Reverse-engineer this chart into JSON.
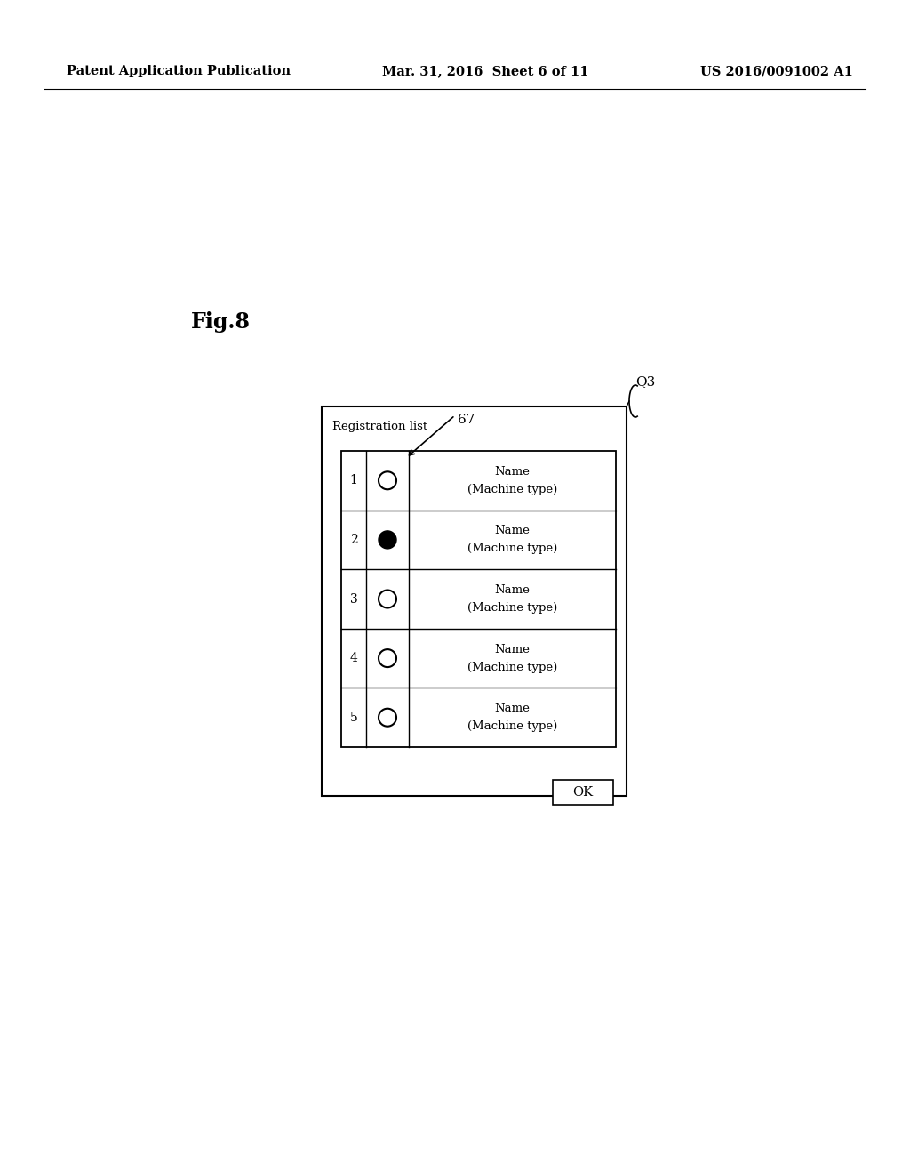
{
  "bg_color": "#ffffff",
  "header_left": "Patent Application Publication",
  "header_center": "Mar. 31, 2016  Sheet 6 of 11",
  "header_right": "US 2016/0091002 A1",
  "fig_label": "Fig.8",
  "label_Q3": "Q3",
  "label_67": "67",
  "panel_title": "Registration list",
  "rows": [
    {
      "num": "1",
      "filled": false,
      "name": "Name",
      "type": "(Machine type)"
    },
    {
      "num": "2",
      "filled": true,
      "name": "Name",
      "type": "(Machine type)"
    },
    {
      "num": "3",
      "filled": false,
      "name": "Name",
      "type": "(Machine type)"
    },
    {
      "num": "4",
      "filled": false,
      "name": "Name",
      "type": "(Machine type)"
    },
    {
      "num": "5",
      "filled": false,
      "name": "Name",
      "type": "(Machine type)"
    }
  ],
  "ok_button": "OK"
}
